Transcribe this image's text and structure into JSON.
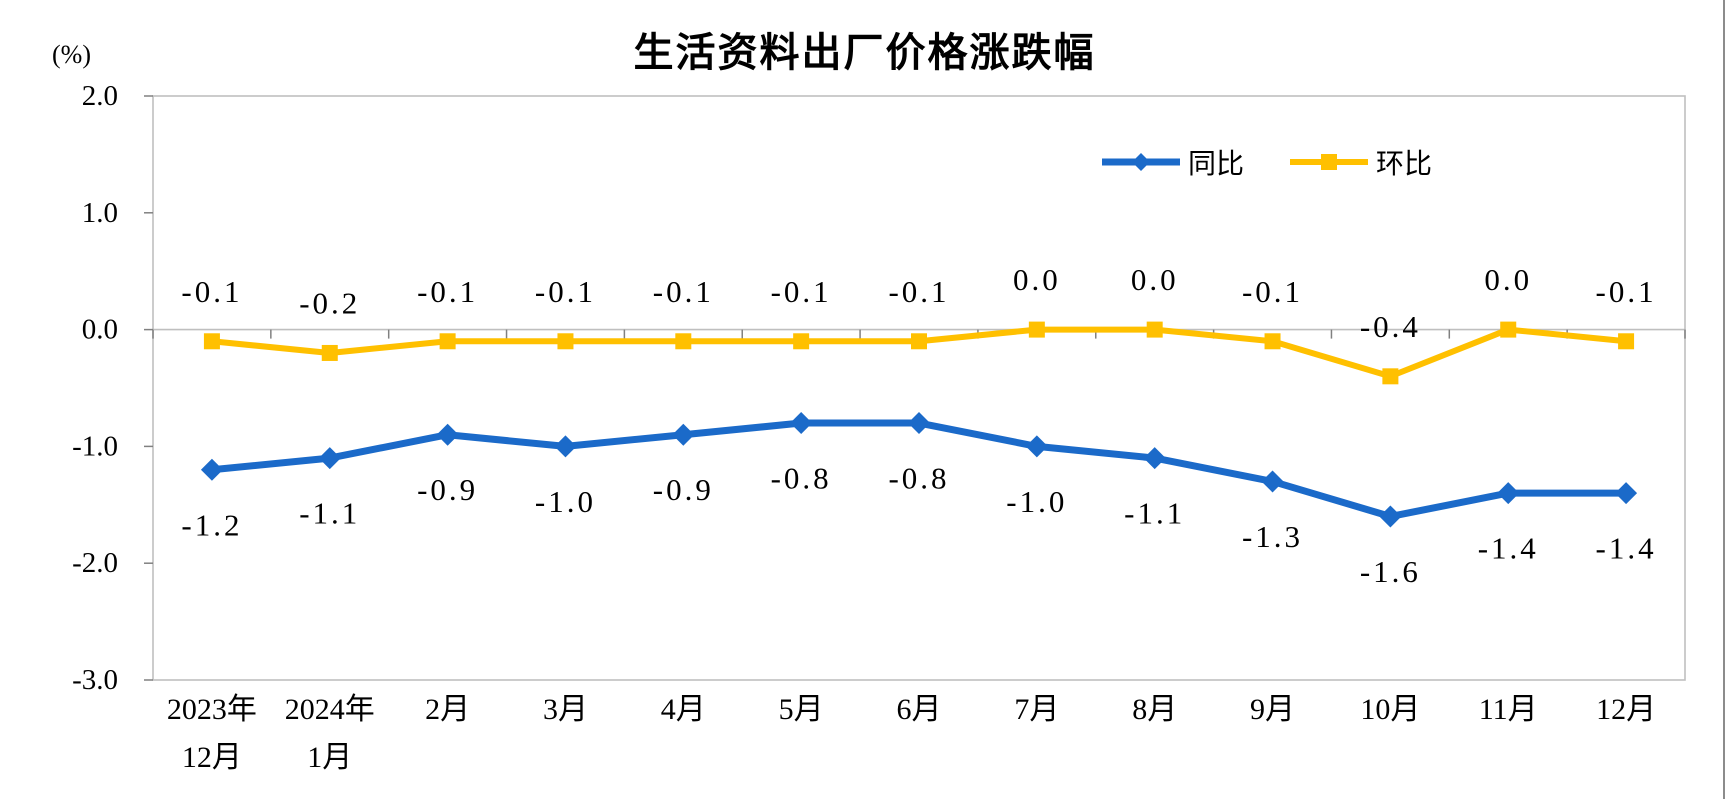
{
  "chart_data": {
    "type": "line",
    "title": "生活资料出厂价格涨跌幅",
    "unit_label": "(%)",
    "categories": [
      "2023年\n12月",
      "2024年\n1月",
      "2月",
      "3月",
      "4月",
      "5月",
      "6月",
      "7月",
      "8月",
      "9月",
      "10月",
      "11月",
      "12月"
    ],
    "series": [
      {
        "name": "同比",
        "color": "#1b6ac9",
        "marker": "diamond",
        "label_position": "below",
        "values": [
          -1.2,
          -1.1,
          -0.9,
          -1.0,
          -0.9,
          -0.8,
          -0.8,
          -1.0,
          -1.1,
          -1.3,
          -1.6,
          -1.4,
          -1.4
        ],
        "labels": [
          "-1.2",
          "-1.1",
          "-0.9",
          "-1.0",
          "-0.9",
          "-0.8",
          "-0.8",
          "-1.0",
          "-1.1",
          "-1.3",
          "-1.6",
          "-1.4",
          "-1.4"
        ]
      },
      {
        "name": "环比",
        "color": "#ffc000",
        "marker": "square",
        "label_position": "above",
        "values": [
          -0.1,
          -0.2,
          -0.1,
          -0.1,
          -0.1,
          -0.1,
          -0.1,
          0.0,
          0.0,
          -0.1,
          -0.4,
          0.0,
          -0.1
        ],
        "labels": [
          "-0.1",
          "-0.2",
          "-0.1",
          "-0.1",
          "-0.1",
          "-0.1",
          "-0.1",
          "0.0",
          "0.0",
          "-0.1",
          "-0.4",
          "0.0",
          "-0.1"
        ]
      }
    ],
    "ylim": [
      -3.0,
      2.0
    ],
    "ytick_labels": [
      "2.0",
      "1.0",
      "0.0",
      "-1.0",
      "-2.0",
      "-3.0"
    ],
    "ytick_values": [
      2.0,
      1.0,
      0.0,
      -1.0,
      -2.0,
      -3.0
    ],
    "grid": "zero-line-only",
    "legend_position": "top-right-inside",
    "colors": {
      "axis_border": "#bfbfbf",
      "tick": "#808080",
      "text": "#000000"
    }
  }
}
